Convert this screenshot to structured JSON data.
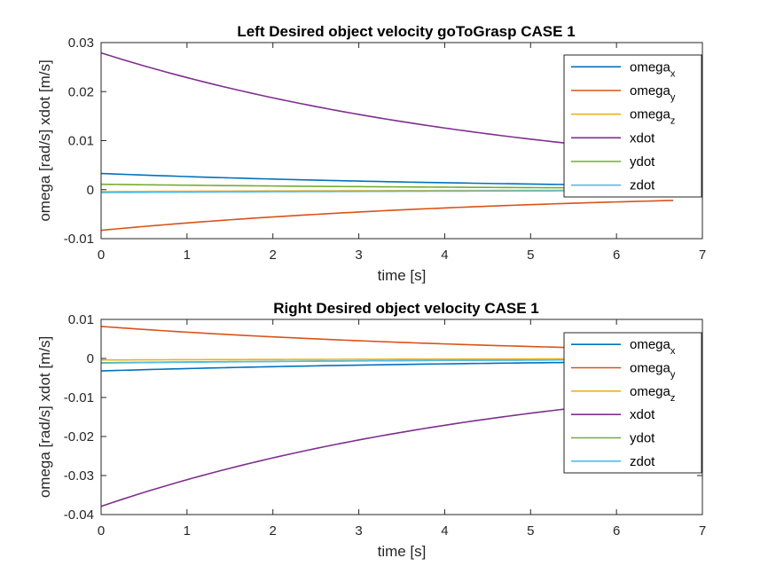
{
  "colors": {
    "omega_x": "#0072BD",
    "omega_y": "#D95319",
    "omega_z": "#EDB120",
    "xdot": "#7E2F8E",
    "ydot": "#77AC30",
    "zdot": "#4DBEEE",
    "axis": "#262626"
  },
  "chart_data": [
    {
      "type": "line",
      "title": "Left Desired object velocity goToGrasp CASE 1",
      "xlabel": "time [s]",
      "ylabel": "omega [rad/s] xdot [m/s]",
      "xlim": [
        0,
        7
      ],
      "ylim": [
        -0.01,
        0.03
      ],
      "xticks": [
        "0",
        "1",
        "2",
        "3",
        "4",
        "5",
        "6",
        "7"
      ],
      "yticks": [
        "-0.01",
        "0",
        "0.01",
        "0.02",
        "0.03"
      ],
      "x_end": 6.66,
      "legend_position": "top-right",
      "series": [
        {
          "name": "omega",
          "sub": "x",
          "color_key": "omega_x",
          "start": 0.0033,
          "end": 0.0008
        },
        {
          "name": "omega",
          "sub": "y",
          "color_key": "omega_y",
          "start": -0.0083,
          "end": -0.0022
        },
        {
          "name": "omega",
          "sub": "z",
          "color_key": "omega_z",
          "start": -0.0004,
          "end": -0.0001
        },
        {
          "name": "xdot",
          "sub": "",
          "color_key": "xdot",
          "start": 0.0279,
          "end": 0.0074
        },
        {
          "name": "ydot",
          "sub": "",
          "color_key": "ydot",
          "start": 0.0011,
          "end": 0.0003
        },
        {
          "name": "zdot",
          "sub": "",
          "color_key": "zdot",
          "start": -0.0006,
          "end": -0.0002
        }
      ]
    },
    {
      "type": "line",
      "title": "Right Desired object velocity CASE 1",
      "xlabel": "time [s]",
      "ylabel": "omega [rad/s] xdot [m/s]",
      "xlim": [
        0,
        7
      ],
      "ylim": [
        -0.04,
        0.01
      ],
      "xticks": [
        "0",
        "1",
        "2",
        "3",
        "4",
        "5",
        "6",
        "7"
      ],
      "yticks": [
        "-0.04",
        "-0.03",
        "-0.02",
        "-0.01",
        "0",
        "0.01"
      ],
      "x_end": 6.66,
      "legend_position": "top-right",
      "series": [
        {
          "name": "omega",
          "sub": "x",
          "color_key": "omega_x",
          "start": -0.0032,
          "end": -0.0008
        },
        {
          "name": "omega",
          "sub": "y",
          "color_key": "omega_y",
          "start": 0.0082,
          "end": 0.0022
        },
        {
          "name": "omega",
          "sub": "z",
          "color_key": "omega_z",
          "start": -0.0004,
          "end": -0.0001
        },
        {
          "name": "xdot",
          "sub": "",
          "color_key": "xdot",
          "start": -0.0379,
          "end": -0.0101
        },
        {
          "name": "ydot",
          "sub": "",
          "color_key": "ydot",
          "start": -0.0011,
          "end": -0.0003
        },
        {
          "name": "zdot",
          "sub": "",
          "color_key": "zdot",
          "start": -0.0012,
          "end": -0.0003
        }
      ]
    }
  ]
}
